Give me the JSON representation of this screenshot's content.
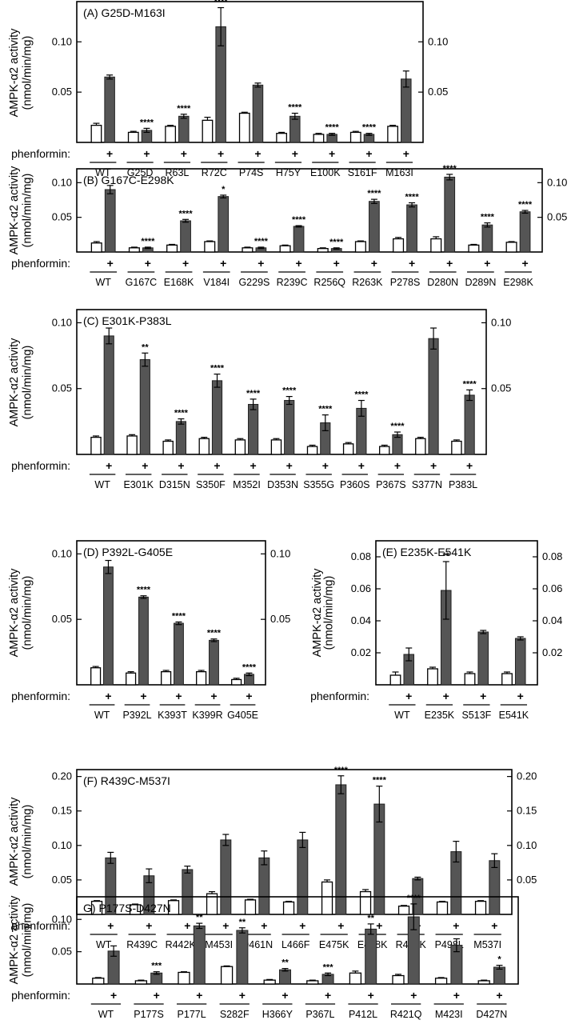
{
  "chart_data": [
    {
      "type": "bar",
      "panel_id": "A",
      "title": "(A) G25D-M163I",
      "ylabel_line1": "AMPK-α2 activity",
      "ylabel_line2": "(nmol/min/mg)",
      "xlabel": "phenformin:",
      "plus_label": "+",
      "ylim": [
        0,
        0.14
      ],
      "yticks": [
        0.05,
        0.1
      ],
      "ytick_labels": [
        "0.05",
        "0.10"
      ],
      "categories": [
        "WT",
        "G25D",
        "R63L",
        "R72C",
        "P74S",
        "H75Y",
        "E100K",
        "S161F",
        "M163I"
      ],
      "series": [
        {
          "name": "untreated",
          "values": [
            0.017,
            0.01,
            0.016,
            0.022,
            0.029,
            0.009,
            0.008,
            0.01,
            0.016
          ],
          "errors": [
            0.002,
            0.001,
            0.001,
            0.003,
            0.001,
            0.001,
            0.001,
            0.001,
            0.001
          ]
        },
        {
          "name": "phenformin",
          "values": [
            0.065,
            0.012,
            0.026,
            0.115,
            0.057,
            0.026,
            0.008,
            0.008,
            0.063
          ],
          "errors": [
            0.002,
            0.002,
            0.002,
            0.019,
            0.002,
            0.003,
            0.001,
            0.001,
            0.008
          ]
        }
      ],
      "significance": [
        "",
        "****",
        "****",
        "****",
        "",
        "****",
        "****",
        "****",
        ""
      ]
    },
    {
      "type": "bar",
      "panel_id": "B",
      "title": "(B) G167C-E298K",
      "ylabel_line1": "AMPK-α2 activity",
      "ylabel_line2": "(nmol/min/mg)",
      "xlabel": "phenformin:",
      "plus_label": "+",
      "ylim": [
        0,
        0.12
      ],
      "yticks": [
        0.05,
        0.1
      ],
      "ytick_labels": [
        "0.05",
        "0.10"
      ],
      "categories": [
        "WT",
        "G167C",
        "E168K",
        "V184I",
        "G229S",
        "R239C",
        "R256Q",
        "R263K",
        "P278S",
        "D280N",
        "D289N",
        "E298K"
      ],
      "series": [
        {
          "name": "untreated",
          "values": [
            0.013,
            0.006,
            0.01,
            0.015,
            0.006,
            0.009,
            0.005,
            0.015,
            0.019,
            0.019,
            0.01,
            0.014
          ],
          "errors": [
            0.002,
            0.001,
            0.001,
            0.001,
            0.001,
            0.001,
            0.001,
            0.001,
            0.002,
            0.003,
            0.001,
            0.001
          ]
        },
        {
          "name": "phenformin",
          "values": [
            0.09,
            0.006,
            0.045,
            0.08,
            0.006,
            0.037,
            0.005,
            0.073,
            0.068,
            0.108,
            0.039,
            0.058
          ],
          "errors": [
            0.006,
            0.001,
            0.002,
            0.002,
            0.001,
            0.001,
            0.001,
            0.003,
            0.003,
            0.004,
            0.003,
            0.002
          ]
        }
      ],
      "significance": [
        "",
        "****",
        "****",
        "*",
        "****",
        "****",
        "****",
        "****",
        "****",
        "****",
        "****",
        "****"
      ]
    },
    {
      "type": "bar",
      "panel_id": "C",
      "title": "(C) E301K-P383L",
      "ylabel_line1": "AMPK-α2 activity",
      "ylabel_line2": "(nmol/min/mg)",
      "xlabel": "phenformin:",
      "plus_label": "+",
      "ylim": [
        0,
        0.11
      ],
      "yticks": [
        0.05,
        0.1
      ],
      "ytick_labels": [
        "0.05",
        "0.10"
      ],
      "categories": [
        "WT",
        "E301K",
        "D315N",
        "S350F",
        "M352I",
        "D353N",
        "S355G",
        "P360S",
        "P367S",
        "S377N",
        "P383L"
      ],
      "series": [
        {
          "name": "untreated",
          "values": [
            0.013,
            0.014,
            0.01,
            0.012,
            0.011,
            0.011,
            0.006,
            0.008,
            0.006,
            0.012,
            0.01
          ],
          "errors": [
            0.001,
            0.001,
            0.001,
            0.001,
            0.001,
            0.001,
            0.001,
            0.001,
            0.001,
            0.001,
            0.001
          ]
        },
        {
          "name": "phenformin",
          "values": [
            0.09,
            0.072,
            0.025,
            0.056,
            0.038,
            0.041,
            0.024,
            0.035,
            0.015,
            0.088,
            0.045
          ],
          "errors": [
            0.006,
            0.005,
            0.002,
            0.005,
            0.004,
            0.003,
            0.006,
            0.006,
            0.002,
            0.008,
            0.004
          ]
        }
      ],
      "significance": [
        "",
        "**",
        "****",
        "****",
        "****",
        "****",
        "****",
        "****",
        "****",
        "",
        "****"
      ]
    },
    {
      "type": "bar",
      "panel_id": "D",
      "title": "(D) P392L-G405E",
      "ylabel_line1": "AMPK-α2 activity",
      "ylabel_line2": "(nmol/min/mg)",
      "xlabel": "phenformin:",
      "plus_label": "+",
      "ylim": [
        0,
        0.11
      ],
      "yticks": [
        0.05,
        0.1
      ],
      "ytick_labels": [
        "0.05",
        "0.10"
      ],
      "categories": [
        "WT",
        "P392L",
        "K393T",
        "K399R",
        "G405E"
      ],
      "series": [
        {
          "name": "untreated",
          "values": [
            0.013,
            0.009,
            0.01,
            0.01,
            0.004
          ],
          "errors": [
            0.001,
            0.001,
            0.001,
            0.001,
            0.001
          ]
        },
        {
          "name": "phenformin",
          "values": [
            0.09,
            0.067,
            0.047,
            0.034,
            0.008
          ],
          "errors": [
            0.005,
            0.001,
            0.001,
            0.001,
            0.001
          ]
        }
      ],
      "significance": [
        "",
        "****",
        "****",
        "****",
        "****"
      ]
    },
    {
      "type": "bar",
      "panel_id": "E",
      "title": "(E) E235K-E541K",
      "ylabel_line1": "AMPK-α2 activity",
      "ylabel_line2": "(nmol/min/mg)",
      "xlabel": "phenformin:",
      "plus_label": "+",
      "ylim": [
        0,
        0.09
      ],
      "yticks": [
        0.02,
        0.04,
        0.06,
        0.08
      ],
      "ytick_labels": [
        "0.02",
        "0.04",
        "0.06",
        "0.08"
      ],
      "categories": [
        "WT",
        "E235K",
        "S513F",
        "E541K"
      ],
      "series": [
        {
          "name": "untreated",
          "values": [
            0.006,
            0.01,
            0.007,
            0.007
          ],
          "errors": [
            0.002,
            0.001,
            0.001,
            0.001
          ]
        },
        {
          "name": "phenformin",
          "values": [
            0.019,
            0.059,
            0.033,
            0.029
          ],
          "errors": [
            0.004,
            0.018,
            0.001,
            0.001
          ]
        }
      ],
      "significance": [
        "",
        "**",
        "",
        ""
      ]
    },
    {
      "type": "bar",
      "panel_id": "F",
      "title": "(F) R439C-M537I",
      "ylabel_line1": "AMPK-α2 activity",
      "ylabel_line2": "(nmol/min/mg)",
      "xlabel": "phenformin:",
      "plus_label": "+",
      "ylim": [
        0,
        0.21
      ],
      "yticks": [
        0.05,
        0.1,
        0.15,
        0.2
      ],
      "ytick_labels": [
        "0.05",
        "0.10",
        "0.15",
        "0.20"
      ],
      "categories": [
        "WT",
        "R439C",
        "R442K",
        "M453I",
        "D461N",
        "L466F",
        "E475K",
        "E478K",
        "R497K",
        "P498L",
        "M537I"
      ],
      "series": [
        {
          "name": "untreated",
          "values": [
            0.019,
            0.014,
            0.02,
            0.03,
            0.021,
            0.018,
            0.047,
            0.033,
            0.012,
            0.018,
            0.019
          ],
          "errors": [
            0.001,
            0.001,
            0.001,
            0.003,
            0.001,
            0.001,
            0.003,
            0.003,
            0.001,
            0.001,
            0.001
          ]
        },
        {
          "name": "phenformin",
          "values": [
            0.082,
            0.056,
            0.065,
            0.108,
            0.082,
            0.108,
            0.188,
            0.16,
            0.052,
            0.091,
            0.078
          ]
        }
      ],
      "errors_phenformin": [
        0.008,
        0.01,
        0.005,
        0.008,
        0.01,
        0.011,
        0.013,
        0.026,
        0.002,
        0.015,
        0.01
      ],
      "significance": [
        "",
        "",
        "",
        "",
        "",
        "",
        "****",
        "****",
        "",
        "",
        ""
      ]
    },
    {
      "type": "bar",
      "panel_id": "G",
      "title": "G) P177S-D427N",
      "ylabel_line1": "AMPK-α2 activity",
      "ylabel_line2": "(nmol/min/mg)",
      "xlabel": "phenformin:",
      "plus_label": "+",
      "ylim": [
        0,
        0.135
      ],
      "yticks": [
        0.05,
        0.1
      ],
      "ytick_labels": [
        "0.05",
        "0.10"
      ],
      "categories": [
        "WT",
        "P177S",
        "P177L",
        "S282F",
        "H366Y",
        "P367L",
        "P412L",
        "R421Q",
        "M423I",
        "D427N"
      ],
      "series": [
        {
          "name": "untreated",
          "values": [
            0.009,
            0.005,
            0.018,
            0.027,
            0.006,
            0.005,
            0.017,
            0.013,
            0.009,
            0.005
          ],
          "errors": [
            0.001,
            0.001,
            0.001,
            0.001,
            0.001,
            0.001,
            0.003,
            0.002,
            0.001,
            0.001
          ]
        },
        {
          "name": "phenformin",
          "values": [
            0.051,
            0.017,
            0.09,
            0.083,
            0.022,
            0.015,
            0.085,
            0.104,
            0.06,
            0.026
          ],
          "errors": [
            0.008,
            0.002,
            0.004,
            0.004,
            0.002,
            0.002,
            0.008,
            0.02,
            0.01,
            0.003
          ]
        }
      ],
      "significance": [
        "",
        "***",
        "**",
        "**",
        "**",
        "***",
        "**",
        "****",
        "",
        "*"
      ]
    }
  ]
}
